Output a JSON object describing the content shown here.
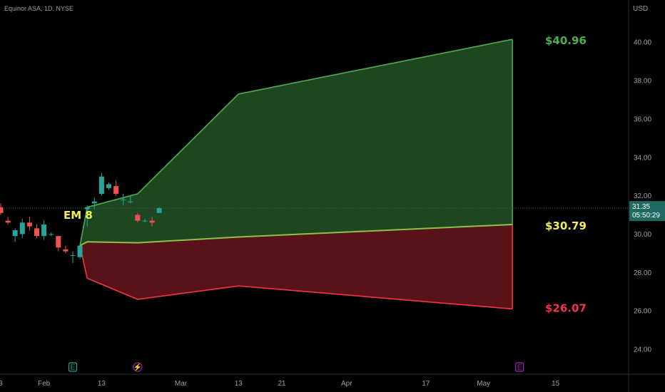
{
  "header": {
    "title": "Equinor ASA, 1D, NYSE"
  },
  "currency_label": "USD",
  "colors": {
    "background": "#000000",
    "up": "#26a69a",
    "down": "#ef5350",
    "upper_band_line": "#4caf50",
    "upper_band_fill": "#1e4620",
    "lower_band_line": "#f23645",
    "lower_band_fill": "#5a1219",
    "mid_line": "#8bc34a",
    "price_tag": "#1f6b64",
    "em_label": "#f3ee52",
    "event_earnings": "#26a69a",
    "event_dividend": "#9c27b0",
    "event_future": "#9c27b0"
  },
  "price_tag": {
    "price": "31.35",
    "countdown": "05:50:29"
  },
  "em_label": "EM 8",
  "band_labels": {
    "upper": "$40.96",
    "mid": "$30.79",
    "lower": "$26.07"
  },
  "events": [
    {
      "label": "E",
      "kind": "earnings",
      "date_index": 10
    },
    {
      "label": "⚡",
      "kind": "dividend",
      "date_index": 19
    },
    {
      "label": "E",
      "kind": "future_earnings",
      "date_index": 72
    }
  ],
  "chart_data": {
    "type": "candlestick",
    "title": "Equinor ASA, 1D, NYSE",
    "y_unit": "USD",
    "ylim": [
      22.7,
      42.2
    ],
    "yticks": [
      "24.00",
      "26.00",
      "28.00",
      "30.00",
      "32.00",
      "34.00",
      "36.00",
      "38.00",
      "40.00"
    ],
    "x_ticks": [
      {
        "label": "3",
        "index": 0
      },
      {
        "label": "Feb",
        "index": 6
      },
      {
        "label": "13",
        "index": 14
      },
      {
        "label": "Mar",
        "index": 25
      },
      {
        "label": "13",
        "index": 33
      },
      {
        "label": "21",
        "index": 39
      },
      {
        "label": "Apr",
        "index": 48
      },
      {
        "label": "17",
        "index": 59
      },
      {
        "label": "May",
        "index": 67
      },
      {
        "label": "15",
        "index": 77
      }
    ],
    "current_price": 31.35,
    "candles": [
      {
        "i": 0,
        "o": 31.4,
        "h": 31.6,
        "l": 31.0,
        "c": 31.1
      },
      {
        "i": 1,
        "o": 30.7,
        "h": 30.9,
        "l": 30.5,
        "c": 30.6
      },
      {
        "i": 2,
        "o": 29.9,
        "h": 30.3,
        "l": 29.6,
        "c": 30.2
      },
      {
        "i": 3,
        "o": 30.0,
        "h": 30.8,
        "l": 29.8,
        "c": 30.6
      },
      {
        "i": 4,
        "o": 30.6,
        "h": 30.9,
        "l": 30.2,
        "c": 30.4
      },
      {
        "i": 5,
        "o": 30.3,
        "h": 30.5,
        "l": 29.8,
        "c": 29.9
      },
      {
        "i": 6,
        "o": 29.9,
        "h": 30.7,
        "l": 29.7,
        "c": 30.5
      },
      {
        "i": 7,
        "o": 30.0,
        "h": 30.1,
        "l": 29.9,
        "c": 30.0
      },
      {
        "i": 8,
        "o": 29.9,
        "h": 29.9,
        "l": 29.1,
        "c": 29.3
      },
      {
        "i": 9,
        "o": 29.2,
        "h": 29.4,
        "l": 29.0,
        "c": 29.1
      },
      {
        "i": 10,
        "o": 28.9,
        "h": 29.1,
        "l": 28.5,
        "c": 28.9
      },
      {
        "i": 11,
        "o": 28.8,
        "h": 29.4,
        "l": 28.7,
        "c": 29.4
      },
      {
        "i": 12,
        "o": 31.3,
        "h": 31.5,
        "l": 30.4,
        "c": 31.4
      },
      {
        "i": 13,
        "o": 31.6,
        "h": 31.9,
        "l": 31.3,
        "c": 31.7
      },
      {
        "i": 14,
        "o": 32.1,
        "h": 33.2,
        "l": 32.0,
        "c": 33.0
      },
      {
        "i": 15,
        "o": 32.4,
        "h": 32.7,
        "l": 32.3,
        "c": 32.6
      },
      {
        "i": 16,
        "o": 32.5,
        "h": 32.8,
        "l": 32.0,
        "c": 32.1
      },
      {
        "i": 17,
        "o": 31.8,
        "h": 32.1,
        "l": 31.5,
        "c": 31.8
      },
      {
        "i": 18,
        "o": 31.7,
        "h": 32.0,
        "l": 31.6,
        "c": 31.7
      },
      {
        "i": 19,
        "o": 31.0,
        "h": 31.1,
        "l": 30.6,
        "c": 30.7
      },
      {
        "i": 20,
        "o": 30.7,
        "h": 30.8,
        "l": 30.6,
        "c": 30.7
      },
      {
        "i": 21,
        "o": 30.7,
        "h": 30.9,
        "l": 30.4,
        "c": 30.6
      },
      {
        "i": 22,
        "o": 31.1,
        "h": 31.4,
        "l": 31.1,
        "c": 31.35
      }
    ],
    "bands": {
      "upper": [
        {
          "i": 11,
          "v": 29.4
        },
        {
          "i": 12,
          "v": 31.4
        },
        {
          "i": 19,
          "v": 32.1
        },
        {
          "i": 33,
          "v": 37.3
        },
        {
          "i": 71,
          "v": 40.15
        }
      ],
      "mid": [
        {
          "i": 11,
          "v": 29.4
        },
        {
          "i": 12,
          "v": 29.6
        },
        {
          "i": 19,
          "v": 29.55
        },
        {
          "i": 33,
          "v": 29.85
        },
        {
          "i": 71,
          "v": 30.5
        }
      ],
      "lower": [
        {
          "i": 11,
          "v": 29.4
        },
        {
          "i": 12,
          "v": 27.7
        },
        {
          "i": 19,
          "v": 26.6
        },
        {
          "i": 33,
          "v": 27.3
        },
        {
          "i": 71,
          "v": 26.1
        }
      ]
    }
  }
}
